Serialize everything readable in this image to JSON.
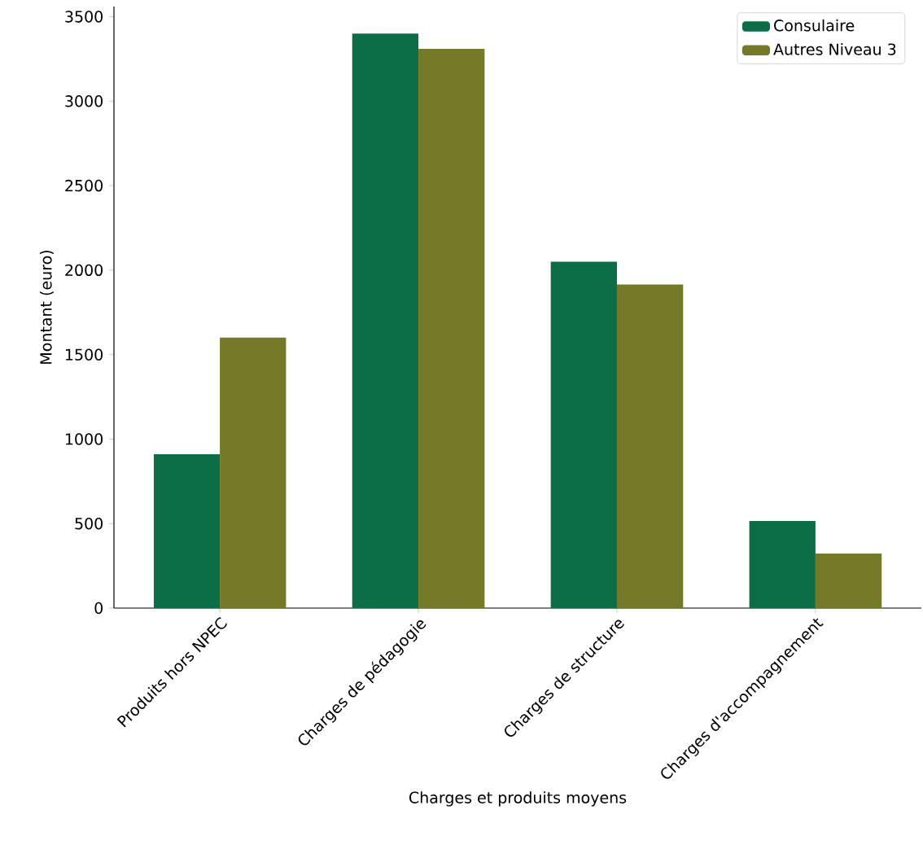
{
  "chart_data": {
    "type": "bar",
    "xlabel": "Charges et produits moyens",
    "ylabel": "Montant (euro)",
    "categories": [
      "Produits hors NPEC",
      "Charges de pédagogie",
      "Charges de structure",
      "Charges d'accompagnement"
    ],
    "series": [
      {
        "name": "Consulaire",
        "color": "#0c6e46",
        "values": [
          910,
          3400,
          2050,
          515
        ]
      },
      {
        "name": "Autres Niveau 3",
        "color": "#747a27",
        "values": [
          1600,
          3310,
          1915,
          323
        ]
      }
    ],
    "ylim": [
      0,
      3560
    ],
    "yticks": [
      0,
      500,
      1000,
      1500,
      2000,
      2500,
      3000,
      3500
    ],
    "legend": "top right"
  }
}
